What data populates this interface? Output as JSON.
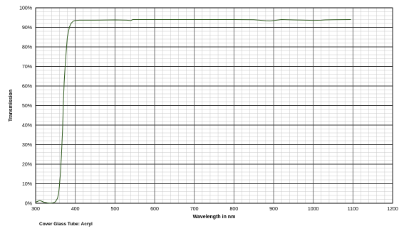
{
  "caption": "Cover Glass Tube: Acryl",
  "chart_data": {
    "type": "line",
    "xlabel": "Wavelength in nm",
    "ylabel": "Transmission",
    "xlim": [
      300,
      1200
    ],
    "ylim": [
      0,
      100
    ],
    "x_ticks": [
      300,
      400,
      500,
      600,
      700,
      800,
      900,
      1000,
      1100,
      1200
    ],
    "x_tick_labels": [
      "300",
      "400",
      "500",
      "600",
      "700",
      "800",
      "900",
      "1000",
      "1100",
      "1200"
    ],
    "y_ticks": [
      0,
      10,
      20,
      30,
      40,
      50,
      60,
      70,
      80,
      90,
      100
    ],
    "y_tick_labels": [
      "0%",
      "10%",
      "20%",
      "30%",
      "40%",
      "50%",
      "60%",
      "70%",
      "80%",
      "90%",
      "100%"
    ],
    "grid": true,
    "legend": "none",
    "line_color": "#2f5a1e",
    "series": [
      {
        "x": [
          300,
          305,
          310,
          315,
          320,
          325,
          330,
          335,
          340,
          345,
          350,
          355,
          358,
          360,
          362,
          365,
          368,
          370,
          372,
          375,
          378,
          380,
          383,
          385,
          388,
          390,
          393,
          395,
          398,
          400,
          405,
          410,
          420,
          450,
          500,
          530,
          540,
          545,
          550,
          600,
          700,
          800,
          850,
          870,
          880,
          890,
          900,
          920,
          950,
          1000,
          1020,
          1030,
          1050,
          1095
        ],
        "y": [
          0.5,
          1.0,
          1.4,
          1.1,
          0.6,
          0.4,
          0.2,
          0.1,
          0.1,
          0.3,
          0.8,
          2.5,
          5,
          9,
          14,
          24,
          38,
          52,
          62,
          72,
          80,
          85,
          88,
          90,
          91.5,
          92.2,
          92.8,
          93.2,
          93.4,
          93.5,
          93.6,
          93.7,
          93.7,
          93.7,
          93.8,
          93.7,
          93.5,
          94.0,
          94.0,
          94.0,
          94.0,
          94.0,
          93.9,
          93.6,
          93.4,
          93.3,
          93.5,
          94.0,
          93.8,
          93.6,
          93.7,
          93.8,
          93.9,
          94.0
        ]
      }
    ]
  }
}
